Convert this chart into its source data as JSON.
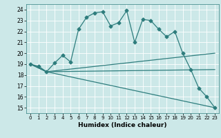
{
  "xlabel": "Humidex (Indice chaleur)",
  "bg_color": "#cce8e8",
  "grid_color": "#b0d4d4",
  "line_color": "#2e7d7d",
  "xlim": [
    -0.5,
    23.5
  ],
  "ylim": [
    14.5,
    24.5
  ],
  "yticks": [
    15,
    16,
    17,
    18,
    19,
    20,
    21,
    22,
    23,
    24
  ],
  "xticks": [
    0,
    1,
    2,
    3,
    4,
    5,
    6,
    7,
    8,
    9,
    10,
    11,
    12,
    13,
    14,
    15,
    16,
    17,
    18,
    19,
    20,
    21,
    22,
    23
  ],
  "line1_x": [
    0,
    1,
    2,
    3,
    4,
    5,
    6,
    7,
    8,
    9,
    10,
    11,
    12,
    13,
    14,
    15,
    16,
    17,
    18,
    19,
    20,
    21,
    22,
    23
  ],
  "line1_y": [
    19.0,
    18.8,
    18.3,
    19.1,
    19.8,
    19.2,
    22.2,
    23.3,
    23.7,
    23.8,
    22.5,
    22.8,
    23.9,
    21.0,
    23.1,
    23.0,
    22.2,
    21.5,
    22.0,
    20.0,
    18.5,
    16.8,
    16.0,
    15.0
  ],
  "line2_x": [
    0,
    2,
    23
  ],
  "line2_y": [
    19.0,
    18.3,
    20.0
  ],
  "line3_x": [
    0,
    2,
    23
  ],
  "line3_y": [
    19.0,
    18.3,
    18.5
  ],
  "line4_x": [
    0,
    2,
    23
  ],
  "line4_y": [
    19.0,
    18.3,
    15.0
  ]
}
